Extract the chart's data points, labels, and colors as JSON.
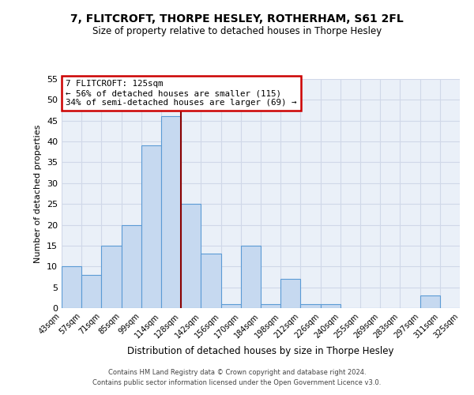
{
  "title": "7, FLITCROFT, THORPE HESLEY, ROTHERHAM, S61 2FL",
  "subtitle": "Size of property relative to detached houses in Thorpe Hesley",
  "xlabel": "Distribution of detached houses by size in Thorpe Hesley",
  "ylabel": "Number of detached properties",
  "bin_labels": [
    "43sqm",
    "57sqm",
    "71sqm",
    "85sqm",
    "99sqm",
    "114sqm",
    "128sqm",
    "142sqm",
    "156sqm",
    "170sqm",
    "184sqm",
    "198sqm",
    "212sqm",
    "226sqm",
    "240sqm",
    "255sqm",
    "269sqm",
    "283sqm",
    "297sqm",
    "311sqm",
    "325sqm"
  ],
  "bar_heights": [
    10,
    8,
    15,
    20,
    39,
    46,
    25,
    13,
    1,
    15,
    1,
    7,
    1,
    1,
    0,
    0,
    0,
    0,
    3,
    0
  ],
  "bar_color": "#c6d9f0",
  "bar_edge_color": "#5b9bd5",
  "grid_color": "#d0d8e8",
  "vline_color": "#8b0000",
  "annotation_title": "7 FLITCROFT: 125sqm",
  "annotation_line1": "← 56% of detached houses are smaller (115)",
  "annotation_line2": "34% of semi-detached houses are larger (69) →",
  "annotation_box_color": "#ffffff",
  "annotation_box_edge": "#cc0000",
  "footer_line1": "Contains HM Land Registry data © Crown copyright and database right 2024.",
  "footer_line2": "Contains public sector information licensed under the Open Government Licence v3.0.",
  "ylim": [
    0,
    55
  ],
  "yticks": [
    0,
    5,
    10,
    15,
    20,
    25,
    30,
    35,
    40,
    45,
    50,
    55
  ],
  "background_color": "#eaf0f8",
  "fig_background": "#ffffff"
}
